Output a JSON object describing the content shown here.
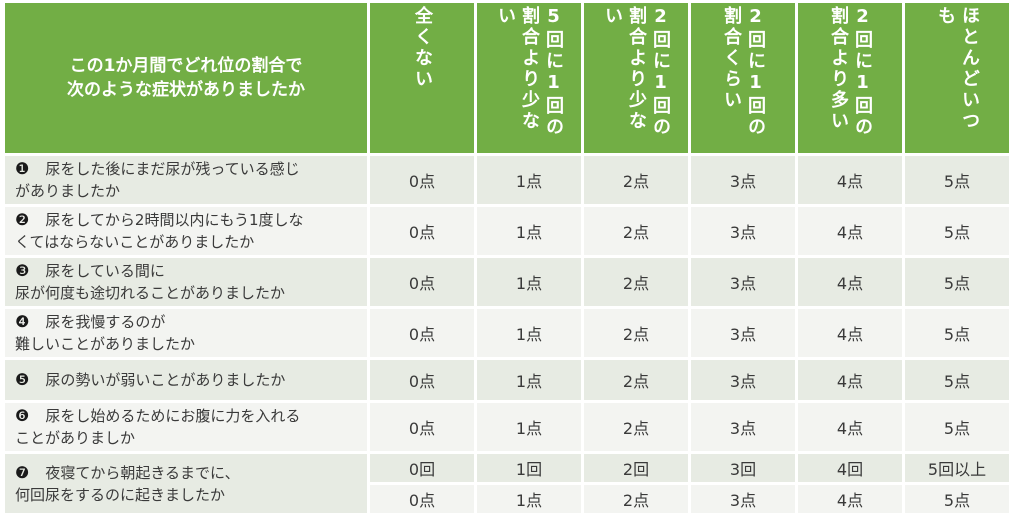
{
  "header": {
    "question_lines": [
      "この1か月間でどれ位の割合で",
      "次のような症状がありましたか"
    ],
    "options": [
      "全くない",
      "5回に1回の割合より少ない",
      "2回に1回の割合より少ない",
      "2回に1回の割合くらい",
      "2回に1回の割合より多い",
      "ほとんどいつも"
    ]
  },
  "rows": [
    {
      "num": "❶",
      "line1": "尿をした後にまだ尿が残っている感じ",
      "line2": "がありましたか",
      "scores": [
        "0点",
        "1点",
        "2点",
        "3点",
        "4点",
        "5点"
      ]
    },
    {
      "num": "❷",
      "line1": "尿をしてから2時間以内にもう1度しな",
      "line2": "くてはならないことがありましたか",
      "scores": [
        "0点",
        "1点",
        "2点",
        "3点",
        "4点",
        "5点"
      ]
    },
    {
      "num": "❸",
      "line1": "尿をしている間に",
      "line2": "尿が何度も途切れることがありましたか",
      "scores": [
        "0点",
        "1点",
        "2点",
        "3点",
        "4点",
        "5点"
      ]
    },
    {
      "num": "❹",
      "line1": "尿を我慢するのが",
      "line2": "難しいことがありましたか",
      "scores": [
        "0点",
        "1点",
        "2点",
        "3点",
        "4点",
        "5点"
      ]
    },
    {
      "num": "❺",
      "line1": "尿の勢いが弱いことがありましたか",
      "line2": "",
      "scores": [
        "0点",
        "1点",
        "2点",
        "3点",
        "4点",
        "5点"
      ]
    },
    {
      "num": "❻",
      "line1": "尿をし始めるためにお腹に力を入れる",
      "line2": "ことがありましか",
      "scores": [
        "0点",
        "1点",
        "2点",
        "3点",
        "4点",
        "5点"
      ]
    },
    {
      "num": "❼",
      "line1": "夜寝てから朝起きるまでに、",
      "line2": "何回尿をするのに起きましたか",
      "counts": [
        "0回",
        "1回",
        "2回",
        "3回",
        "4回",
        "5回以上"
      ],
      "scores": [
        "0点",
        "1点",
        "2点",
        "3点",
        "4点",
        "5点"
      ]
    }
  ]
}
